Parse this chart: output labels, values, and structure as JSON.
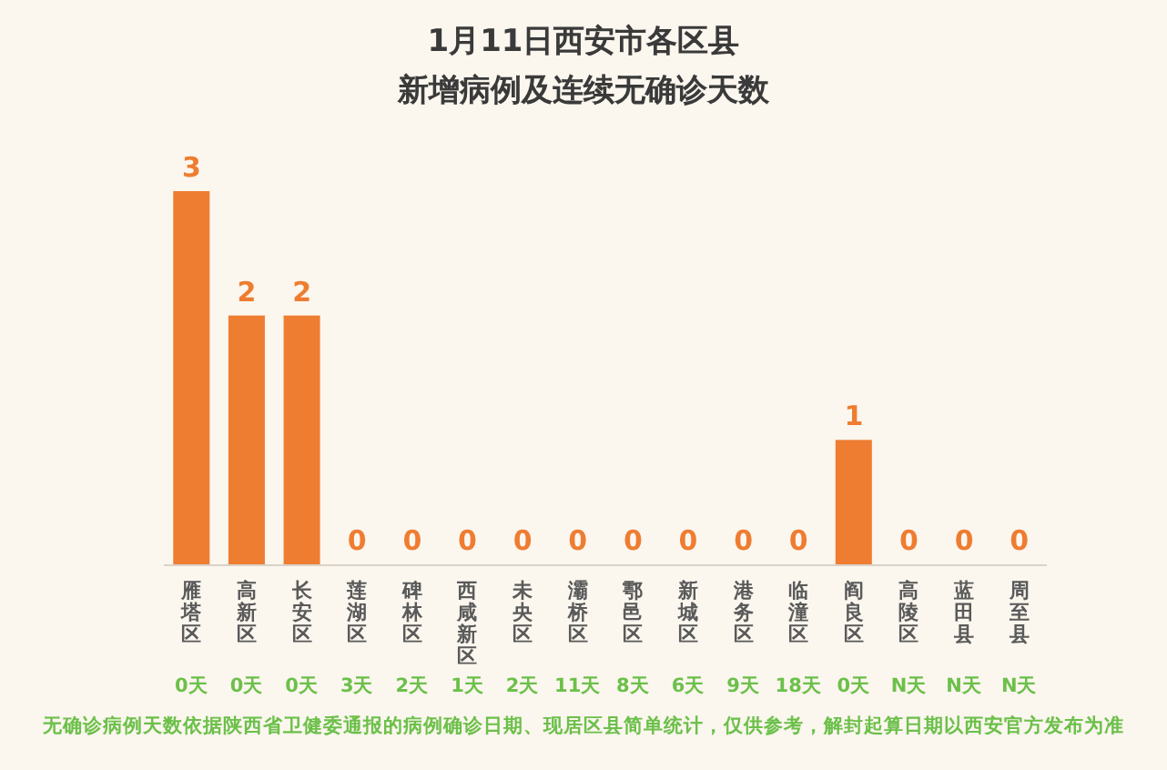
{
  "chart_data": {
    "type": "bar",
    "title": "1月11日西安市各区县",
    "subtitle": "新增病例及连续无确诊天数",
    "categories": [
      "雁塔区",
      "高新区",
      "长安区",
      "莲湖区",
      "碑林区",
      "西咸新区",
      "未央区",
      "灞桥区",
      "鄠邑区",
      "新城区",
      "港务区",
      "临潼区",
      "阎良区",
      "高陵区",
      "蓝田县",
      "周至县"
    ],
    "values": [
      3,
      2,
      2,
      0,
      0,
      0,
      0,
      0,
      0,
      0,
      0,
      0,
      1,
      0,
      0,
      0
    ],
    "color": "#ee7d31",
    "data_labels": true,
    "annotations": [
      "0天",
      "0天",
      "0天",
      "3天",
      "2天",
      "1天",
      "2天",
      "11天",
      "8天",
      "6天",
      "9天",
      "18天",
      "0天",
      "N天",
      "N天",
      "N天",
      "无确诊病例天数依据陕西省卫健委通报的病例确诊日期、现居区县简单统计，仅供参考，解封起算日期以西安官方发布为准"
    ]
  }
}
